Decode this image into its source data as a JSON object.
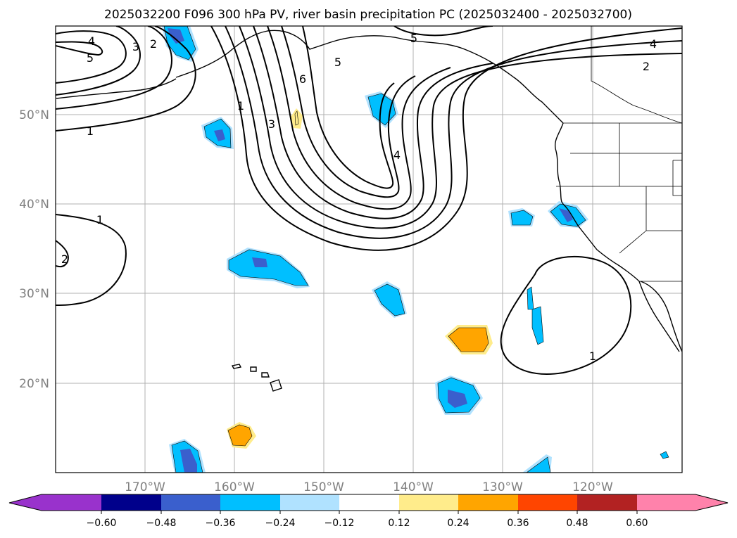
{
  "title": "2025032200 F096 300 hPa PV, river basin precipitation PC (2025032400 - 2025032700)",
  "map": {
    "lon_labels": [
      "170°W",
      "160°W",
      "150°W",
      "140°W",
      "130°W",
      "120°W"
    ],
    "lat_labels": [
      "50°N",
      "40°N",
      "30°N",
      "20°N"
    ],
    "gridlines": true,
    "coastline_color": "#000000",
    "pv_contour_color": "#000000",
    "pv_contour_labels": [
      "4",
      "5",
      "3",
      "2",
      "1",
      "1",
      "6",
      "3",
      "5",
      "4",
      "5",
      "4",
      "2",
      "1",
      "2",
      "1"
    ]
  },
  "colorbar": {
    "ticks": [
      "−0.60",
      "−0.48",
      "−0.36",
      "−0.24",
      "−0.12",
      "0.12",
      "0.24",
      "0.36",
      "0.48",
      "0.60"
    ],
    "colors": [
      "#9932CC",
      "#00008B",
      "#3A5FCD",
      "#00BFFF",
      "#B0E2FF",
      "#FFFFFF",
      "#FFEC8B",
      "#FFA500",
      "#FF4500",
      "#B22222",
      "#FF82AB"
    ],
    "extend": "both"
  }
}
